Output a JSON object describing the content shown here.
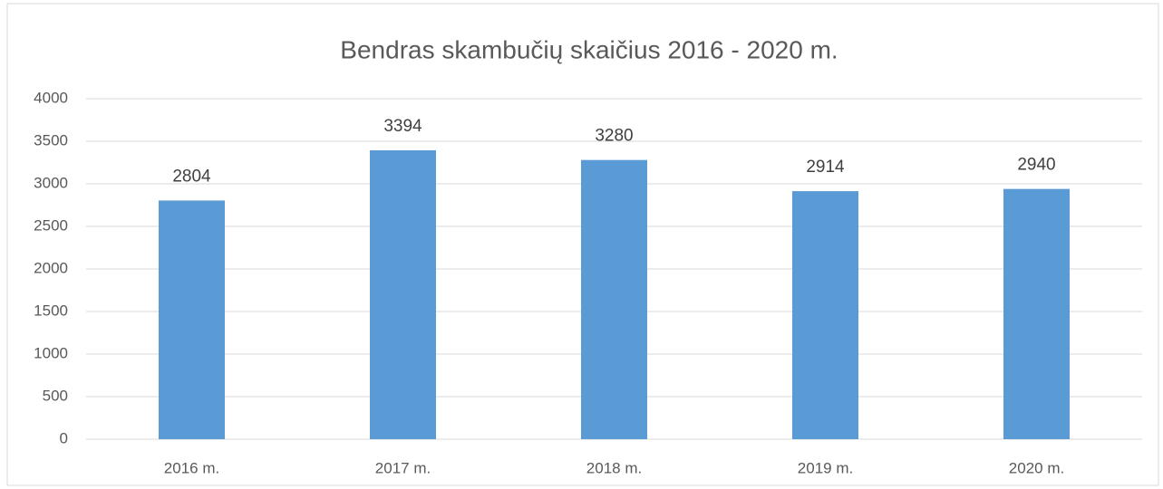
{
  "chart_data": {
    "type": "bar",
    "title": "Bendras skambučių skaičius 2016 - 2020 m.",
    "categories": [
      "2016 m.",
      "2017 m.",
      "2018 m.",
      "2019 m.",
      "2020 m."
    ],
    "values": [
      2804,
      3394,
      3280,
      2914,
      2940
    ],
    "color": "#5b9bd5",
    "ylim": [
      0,
      4000
    ],
    "yticks": [
      0,
      500,
      1000,
      1500,
      2000,
      2500,
      3000,
      3500,
      4000
    ],
    "grid": true
  }
}
